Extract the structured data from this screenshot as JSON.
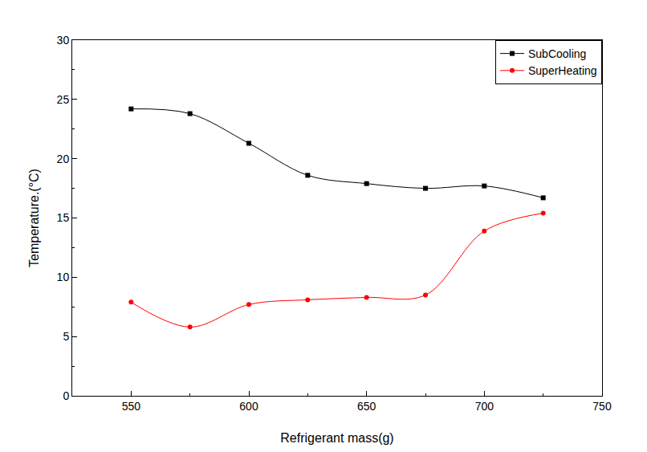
{
  "chart_data": {
    "type": "line",
    "x_label": "Refrigerant mass(g)",
    "y_label": "Temperature.(°C)",
    "x": [
      550,
      575,
      600,
      625,
      650,
      675,
      700,
      725
    ],
    "series": [
      {
        "name": "SubCooling",
        "color": "#000000",
        "marker": "square",
        "values": [
          24.2,
          23.8,
          21.3,
          18.6,
          17.9,
          17.5,
          17.7,
          16.7
        ]
      },
      {
        "name": "SuperHeating",
        "color": "#ff0000",
        "marker": "circle",
        "values": [
          7.9,
          5.8,
          7.7,
          8.1,
          8.3,
          8.5,
          13.9,
          15.4
        ]
      }
    ],
    "xlim": [
      525,
      750
    ],
    "xticks": [
      550,
      600,
      650,
      700,
      750
    ],
    "ylim": [
      0,
      30
    ],
    "yticks": [
      0,
      5,
      10,
      15,
      20,
      25,
      30
    ],
    "grid": false,
    "legend": "upper right"
  }
}
